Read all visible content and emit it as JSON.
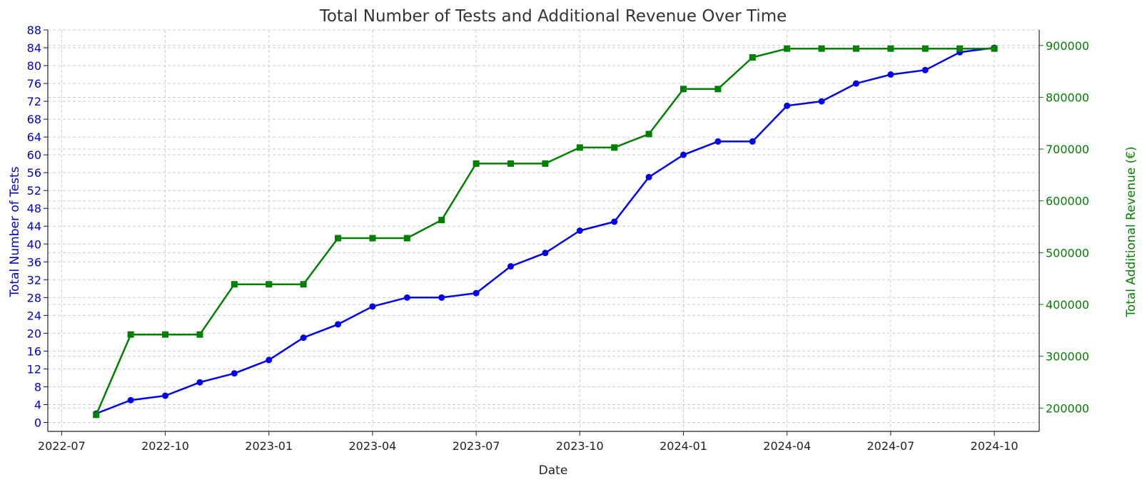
{
  "chart_data": {
    "type": "line",
    "title": "Total Number of Tests and Additional Revenue Over Time",
    "xlabel": "Date",
    "y_left_label": "Total Number of Tests",
    "y_right_label": "Total Additional Revenue (€)",
    "x_ticks": [
      "2022-07",
      "2022-10",
      "2023-01",
      "2023-04",
      "2023-07",
      "2023-10",
      "2024-01",
      "2024-04",
      "2024-07",
      "2024-10"
    ],
    "y_left_ticks": [
      0,
      4,
      8,
      12,
      16,
      20,
      24,
      28,
      32,
      36,
      40,
      44,
      48,
      52,
      56,
      60,
      64,
      68,
      72,
      76,
      80,
      84,
      88
    ],
    "y_right_ticks": [
      200000,
      300000,
      400000,
      500000,
      600000,
      700000,
      800000,
      900000
    ],
    "y_left_range": [
      -2,
      88
    ],
    "y_right_range": [
      155000,
      930000
    ],
    "grid": true,
    "dates": [
      "2022-08",
      "2022-09",
      "2022-10",
      "2022-11",
      "2022-12",
      "2023-01",
      "2023-02",
      "2023-03",
      "2023-04",
      "2023-05",
      "2023-06",
      "2023-07",
      "2023-08",
      "2023-09",
      "2023-10",
      "2023-11",
      "2023-12",
      "2024-01",
      "2024-02",
      "2024-03",
      "2024-04",
      "2024-05",
      "2024-06",
      "2024-07",
      "2024-08",
      "2024-09",
      "2024-10"
    ],
    "series": [
      {
        "axis": "left",
        "color": "#0000ee",
        "marker": "circle",
        "values": [
          2,
          5,
          6,
          9,
          11,
          14,
          19,
          22,
          26,
          28,
          28,
          29,
          35,
          38,
          43,
          45,
          55,
          60,
          63,
          63,
          71,
          72,
          76,
          78,
          79,
          83,
          84
        ]
      },
      {
        "axis": "right",
        "color": "#008000",
        "marker": "square",
        "values": [
          187000,
          342000,
          342000,
          342000,
          439000,
          439000,
          439000,
          528000,
          528000,
          528000,
          563000,
          672000,
          672000,
          672000,
          703000,
          703000,
          729000,
          816000,
          816000,
          877000,
          894000,
          894000,
          894000,
          894000,
          894000,
          894000,
          894000
        ]
      }
    ]
  }
}
